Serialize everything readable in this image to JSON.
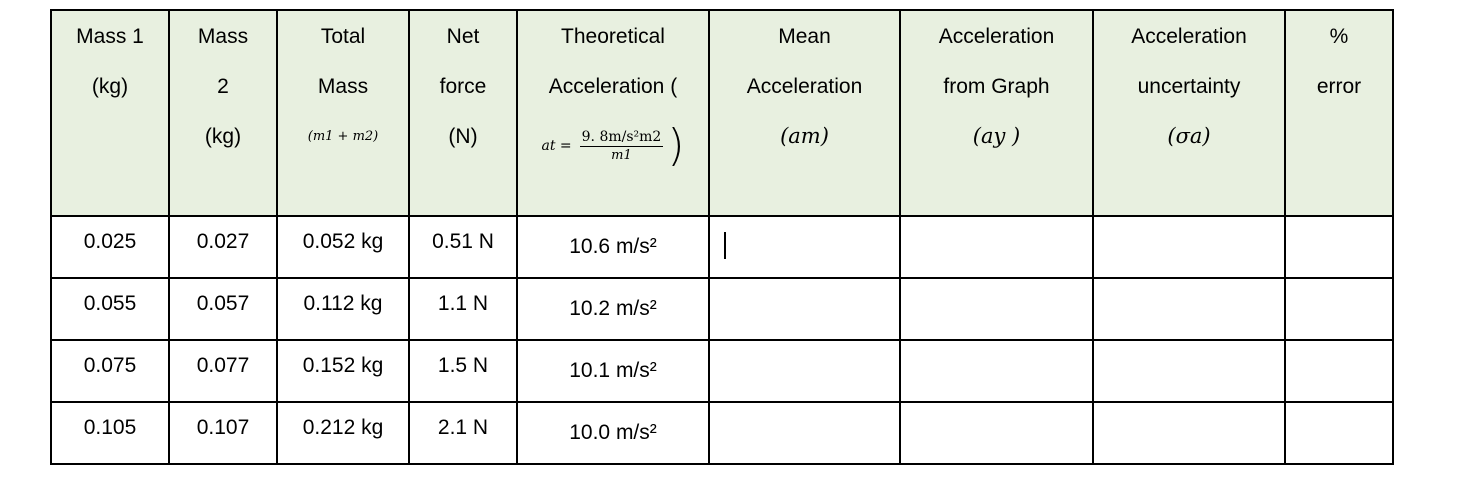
{
  "table": {
    "headers": [
      {
        "lines": [
          "Mass 1",
          "(kg)"
        ]
      },
      {
        "lines": [
          "Mass",
          "2",
          "(kg)"
        ]
      },
      {
        "lines": [
          "Total",
          "Mass"
        ],
        "math": "(m1 + m2)"
      },
      {
        "lines": [
          "Net",
          "force",
          "(N)"
        ]
      },
      {
        "lines": [
          "Theoretical",
          "Acceleration ("
        ],
        "formula": {
          "lhs": "at =",
          "numerator": "9. 8m/s²m2",
          "denominator": "m1"
        }
      },
      {
        "lines": [
          "Mean",
          "Acceleration"
        ],
        "math": "(am)"
      },
      {
        "lines": [
          "Acceleration",
          "from Graph"
        ],
        "math": "(ay )"
      },
      {
        "lines": [
          "Acceleration",
          "uncertainty"
        ],
        "math": "(σa)"
      },
      {
        "lines": [
          "%",
          "error"
        ]
      }
    ],
    "rows": [
      {
        "mass1": "0.025",
        "mass2": "0.027",
        "total_mass": "0.052 kg",
        "net_force": "0.51 N",
        "theoretical": "10.6 m/s²",
        "mean": "",
        "graph": "",
        "uncertainty": "",
        "error": ""
      },
      {
        "mass1": "0.055",
        "mass2": "0.057",
        "total_mass": "0.112 kg",
        "net_force": "1.1 N",
        "theoretical": "10.2 m/s²",
        "mean": "",
        "graph": "",
        "uncertainty": "",
        "error": ""
      },
      {
        "mass1": "0.075",
        "mass2": "0.077",
        "total_mass": "0.152 kg",
        "net_force": "1.5 N",
        "theoretical": "10.1 m/s²",
        "mean": "",
        "graph": "",
        "uncertainty": "",
        "error": ""
      },
      {
        "mass1": "0.105",
        "mass2": "0.107",
        "total_mass": "0.212 kg",
        "net_force": "2.1 N",
        "theoretical": "10.0 m/s²",
        "mean": "",
        "graph": "",
        "uncertainty": "",
        "error": ""
      }
    ]
  }
}
